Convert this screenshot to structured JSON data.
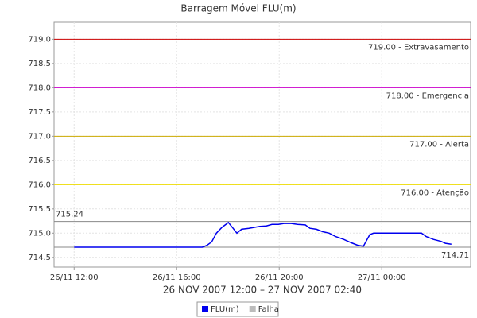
{
  "chart_data": {
    "type": "line",
    "title": "Barragem Móvel FLU(m)",
    "x_label": "26 NOV 2007 12:00 – 27 NOV 2007 02:40",
    "x": [
      "26/11 12:00",
      "26/11 13:00",
      "26/11 14:00",
      "26/11 15:00",
      "26/11 16:00",
      "26/11 17:00",
      "26/11 17:11",
      "26/11 17:22",
      "26/11 17:33",
      "26/11 17:46",
      "26/11 18:01",
      "26/11 18:12",
      "26/11 18:21",
      "26/11 18:32",
      "26/11 18:49",
      "26/11 19:02",
      "26/11 19:15",
      "26/11 19:30",
      "26/11 19:43",
      "26/11 19:58",
      "26/11 20:11",
      "26/11 20:28",
      "26/11 20:43",
      "26/11 21:01",
      "26/11 21:12",
      "26/11 21:27",
      "26/11 21:42",
      "26/11 21:57",
      "26/11 22:12",
      "26/11 22:31",
      "26/11 22:49",
      "26/11 23:04",
      "26/11 23:17",
      "26/11 23:32",
      "26/11 23:41",
      "27/11 00:00",
      "27/11 00:37",
      "27/11 01:33",
      "27/11 01:44",
      "27/11 02:01",
      "27/11 02:19",
      "27/11 02:29",
      "27/11 02:43"
    ],
    "series": [
      {
        "name": "FLU(m)",
        "color": "#0000ee",
        "values": [
          714.71,
          714.71,
          714.71,
          714.71,
          714.71,
          714.71,
          714.75,
          714.82,
          715.0,
          715.12,
          715.22,
          715.1,
          715.0,
          715.08,
          715.1,
          715.12,
          715.14,
          715.15,
          715.18,
          715.18,
          715.2,
          715.2,
          715.18,
          715.17,
          715.1,
          715.08,
          715.03,
          715.0,
          714.93,
          714.87,
          714.8,
          714.75,
          714.73,
          714.97,
          715.0,
          715.0,
          715.0,
          715.0,
          714.93,
          714.87,
          714.83,
          714.79,
          714.77
        ]
      },
      {
        "name": "Falha",
        "color": "#bbbbbb",
        "values": [
          null,
          null,
          null,
          null,
          null,
          null,
          null,
          null,
          null,
          null,
          null,
          null,
          null,
          null,
          null,
          null,
          null,
          null,
          null,
          null,
          null,
          null,
          null,
          null,
          null,
          null,
          null,
          null,
          null,
          null,
          null,
          null,
          null,
          null,
          null,
          null,
          null,
          null,
          null,
          null,
          null,
          null,
          null
        ]
      }
    ],
    "xlim": [
      "26/11 11:13",
      "27/11 03:28"
    ],
    "xticks": [
      "26/11 12:00",
      "26/11 16:00",
      "26/11 20:00",
      "27/11 00:00"
    ],
    "ylim": [
      714.3,
      719.35
    ],
    "yticks": [
      714.5,
      {
        "value": 715,
        "label": "715.0"
      },
      715.5,
      {
        "value": 716,
        "label": "716.0"
      },
      716.5,
      {
        "value": 717,
        "label": "717.0"
      },
      717.5,
      {
        "value": 718,
        "label": "718.0"
      },
      718.5,
      {
        "value": 719,
        "label": "719.0"
      }
    ],
    "grid": true,
    "thresholds": [
      {
        "value": 719,
        "label": "719.00 - Extravasamento",
        "color": "#cc0000"
      },
      {
        "value": 718,
        "label": "718.00 - Emergencia",
        "color": "#cc00cc"
      },
      {
        "value": 717,
        "label": "717.00 - Alerta",
        "color": "#ccaa00"
      },
      {
        "value": 716,
        "label": "716.00 - Atenção",
        "color": "#eedd00"
      }
    ],
    "range_markers": [
      715.24,
      714.71
    ],
    "legend": "bottom"
  }
}
